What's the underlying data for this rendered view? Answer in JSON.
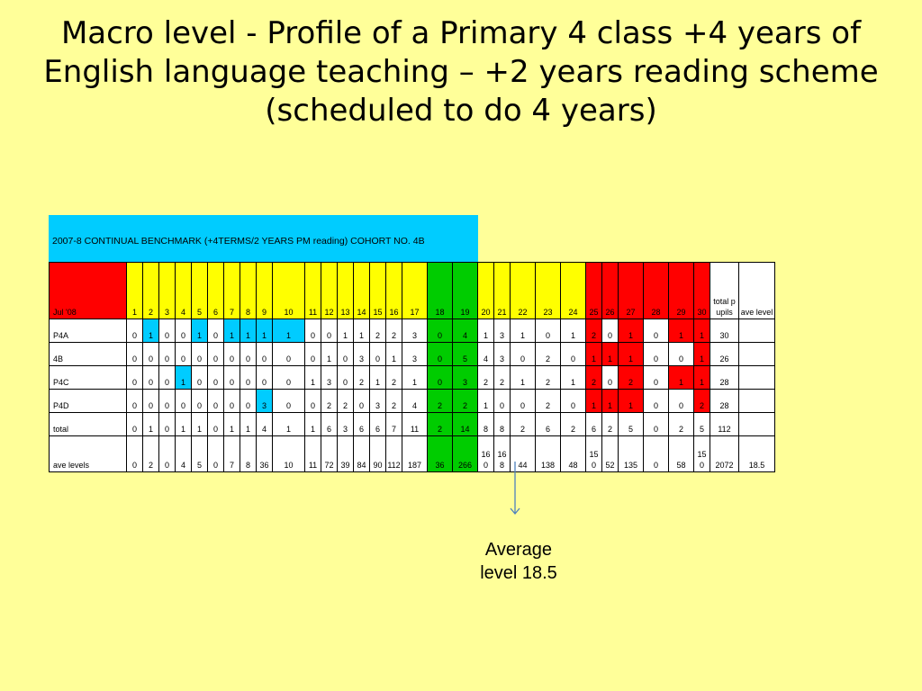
{
  "slide": {
    "title": "Macro level - Profile of a Primary 4 class +4 years of English language teaching – +2 years reading scheme (scheduled to do 4 years)"
  },
  "table": {
    "cohort_title": "2007-8 CONTINUAL BENCHMARK (+4TERMS/2 YEARS PM reading) COHORT NO. 4B",
    "corner_label": "Jul '08",
    "levels": [
      "1",
      "2",
      "3",
      "4",
      "5",
      "6",
      "7",
      "8",
      "9",
      "10",
      "11",
      "12",
      "13",
      "14",
      "15",
      "16",
      "17",
      "18",
      "19",
      "20",
      "21",
      "22",
      "23",
      "24",
      "25",
      "26",
      "27",
      "28",
      "29",
      "30"
    ],
    "total_pupils_label": "total pupils",
    "ave_level_label": "ave level",
    "rows": [
      {
        "label": "P4A",
        "cells": [
          "0",
          "1",
          "0",
          "0",
          "1",
          "0",
          "1",
          "1",
          "1",
          "1",
          "0",
          "0",
          "1",
          "1",
          "2",
          "2",
          "3",
          "0",
          "4",
          "1",
          "3",
          "1",
          "0",
          "1",
          "2",
          "0",
          "1",
          "0",
          "1",
          "1"
        ],
        "total": "30",
        "ave": ""
      },
      {
        "label": "4B",
        "cells": [
          "0",
          "0",
          "0",
          "0",
          "0",
          "0",
          "0",
          "0",
          "0",
          "0",
          "0",
          "1",
          "0",
          "3",
          "0",
          "1",
          "3",
          "0",
          "5",
          "4",
          "3",
          "0",
          "2",
          "0",
          "1",
          "1",
          "1",
          "0",
          "0",
          "1"
        ],
        "total": "26",
        "ave": ""
      },
      {
        "label": "P4C",
        "cells": [
          "0",
          "0",
          "0",
          "1",
          "0",
          "0",
          "0",
          "0",
          "0",
          "0",
          "1",
          "3",
          "0",
          "2",
          "1",
          "2",
          "1",
          "0",
          "3",
          "2",
          "2",
          "1",
          "2",
          "1",
          "2",
          "0",
          "2",
          "0",
          "1",
          "1"
        ],
        "total": "28",
        "ave": ""
      },
      {
        "label": "P4D",
        "cells": [
          "0",
          "0",
          "0",
          "0",
          "0",
          "0",
          "0",
          "0",
          "3",
          "0",
          "0",
          "2",
          "2",
          "0",
          "3",
          "2",
          "4",
          "2",
          "2",
          "1",
          "0",
          "0",
          "2",
          "0",
          "1",
          "1",
          "1",
          "0",
          "0",
          "2"
        ],
        "total": "28",
        "ave": ""
      },
      {
        "label": "total",
        "cells": [
          "0",
          "1",
          "0",
          "1",
          "1",
          "0",
          "1",
          "1",
          "4",
          "1",
          "1",
          "6",
          "3",
          "6",
          "6",
          "7",
          "11",
          "2",
          "14",
          "8",
          "8",
          "2",
          "6",
          "2",
          "6",
          "2",
          "5",
          "0",
          "2",
          "5"
        ],
        "total": "112",
        "ave": ""
      },
      {
        "label": "ave levels",
        "cells": [
          "0",
          "2",
          "0",
          "4",
          "5",
          "0",
          "7",
          "8",
          "36",
          "10",
          "11",
          "72",
          "39",
          "84",
          "90",
          "112",
          "187",
          "36",
          "266",
          "160",
          "168",
          "44",
          "138",
          "48",
          "150",
          "52",
          "135",
          "0",
          "58",
          "150"
        ],
        "total": "2072",
        "ave": "18.5"
      }
    ],
    "colors": {
      "red": "#ff0000",
      "yellow": "#ffff00",
      "green": "#00cc00",
      "cyan": "#00ccff",
      "white": "#ffffff",
      "arrow": "#4f81bd"
    }
  },
  "annotation": {
    "arrow_icon": "down-arrow-icon",
    "line1": "Average",
    "line2": "level 18.5"
  }
}
